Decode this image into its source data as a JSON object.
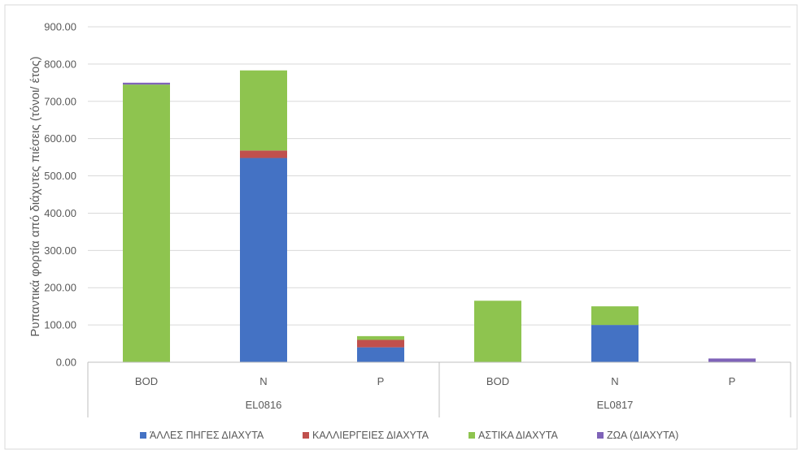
{
  "chart_data": {
    "type": "bar",
    "stacked": true,
    "ylabel": "Ρυπαντικά φορτία από διάχυτες πιέσεις (τόνοι/ έτος)",
    "ylim": [
      0,
      900
    ],
    "yticks": [
      "0.00",
      "100.00",
      "200.00",
      "300.00",
      "400.00",
      "500.00",
      "600.00",
      "700.00",
      "800.00",
      "900.00"
    ],
    "grid": true,
    "legend_position": "bottom",
    "groups": [
      {
        "name": "EL0816",
        "categories": [
          "BOD",
          "N",
          "P"
        ]
      },
      {
        "name": "EL0817",
        "categories": [
          "BOD",
          "N",
          "P"
        ]
      }
    ],
    "categories": [
      "BOD",
      "N",
      "P",
      "BOD",
      "N",
      "P"
    ],
    "series": [
      {
        "name": "ΆΛΛΕΣ ΠΗΓΕΣ ΔΙΑΧΥΤΑ",
        "color": "#4472c4",
        "values": [
          0,
          548,
          40,
          0,
          100,
          0
        ]
      },
      {
        "name": "ΚΑΛΛΙΕΡΓΕΙΕΣ ΔΙΑΧΥΤΑ",
        "color": "#c0504d",
        "values": [
          0,
          20,
          20,
          0,
          0,
          0
        ]
      },
      {
        "name": "ΑΣΤΙΚΑ ΔΙΑΧΥΤΑ",
        "color": "#8ec44f",
        "values": [
          745,
          215,
          10,
          165,
          50,
          0
        ]
      },
      {
        "name": "ΖΩΑ (ΔΙΑΧΥΤΑ)",
        "color": "#7f63b8",
        "values": [
          5,
          0,
          0,
          0,
          0,
          10
        ]
      }
    ]
  }
}
